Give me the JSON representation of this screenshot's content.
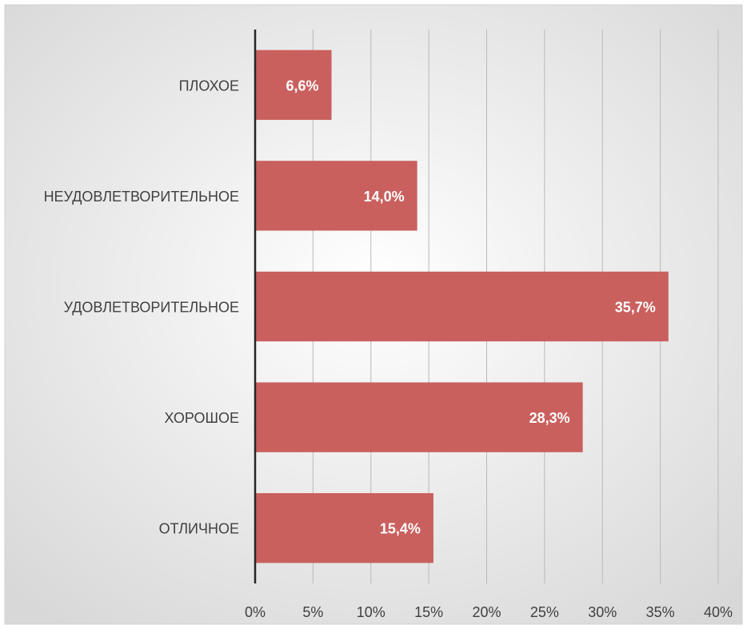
{
  "chart_data": {
    "type": "bar",
    "orientation": "horizontal",
    "categories": [
      "ПЛОХОЕ",
      "НЕУДОВЛЕТВОРИТЕЛЬНОЕ",
      "УДОВЛЕТВОРИТЕЛЬНОЕ",
      "ХОРОШОЕ",
      "ОТЛИЧНОЕ"
    ],
    "values": [
      6.6,
      14.0,
      35.7,
      28.3,
      15.4
    ],
    "data_labels": [
      "6,6%",
      "14,0%",
      "35,7%",
      "28,3%",
      "15,4%"
    ],
    "x_ticks": [
      "0%",
      "5%",
      "10%",
      "15%",
      "20%",
      "25%",
      "30%",
      "35%",
      "40%"
    ],
    "xlim": [
      0,
      40
    ],
    "title": "",
    "xlabel": "",
    "ylabel": "",
    "grid": true,
    "legend": "none",
    "colors": {
      "bar": "#c9605e",
      "label": "#ffffff",
      "grid": "#b9b9b9",
      "axis": "#262626",
      "bg_center": "#ffffff",
      "bg_edge": "#d8d8d8"
    }
  }
}
